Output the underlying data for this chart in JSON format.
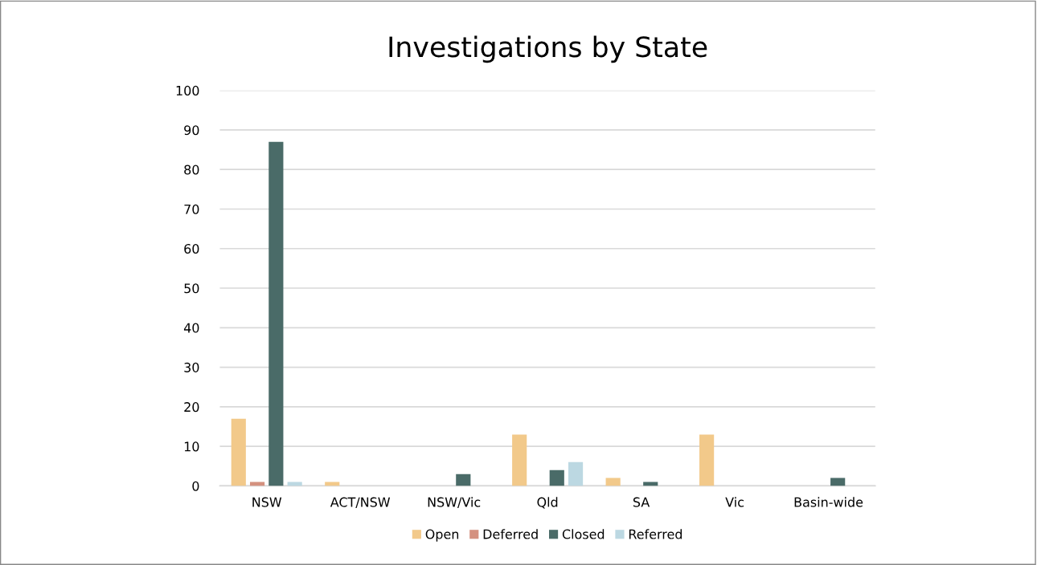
{
  "chart_data": {
    "type": "bar",
    "title": "Investigations by State",
    "categories": [
      "NSW",
      "ACT/NSW",
      "NSW/Vic",
      "Qld",
      "SA",
      "Vic",
      "Basin-wide"
    ],
    "series": [
      {
        "name": "Open",
        "color": "#f2c98a",
        "values": [
          17,
          1,
          0,
          13,
          2,
          13,
          0
        ]
      },
      {
        "name": "Deferred",
        "color": "#d4917f",
        "values": [
          1,
          0,
          0,
          0,
          0,
          0,
          0
        ]
      },
      {
        "name": "Closed",
        "color": "#4a6b68",
        "values": [
          87,
          0,
          3,
          4,
          1,
          0,
          2
        ]
      },
      {
        "name": "Referred",
        "color": "#bcd8e2",
        "values": [
          1,
          0,
          0,
          6,
          0,
          0,
          0
        ]
      }
    ],
    "ylim": [
      0,
      100
    ],
    "yticks": [
      0,
      10,
      20,
      30,
      40,
      50,
      60,
      70,
      80,
      90,
      100
    ],
    "grid": "y",
    "legend": "bottom"
  }
}
